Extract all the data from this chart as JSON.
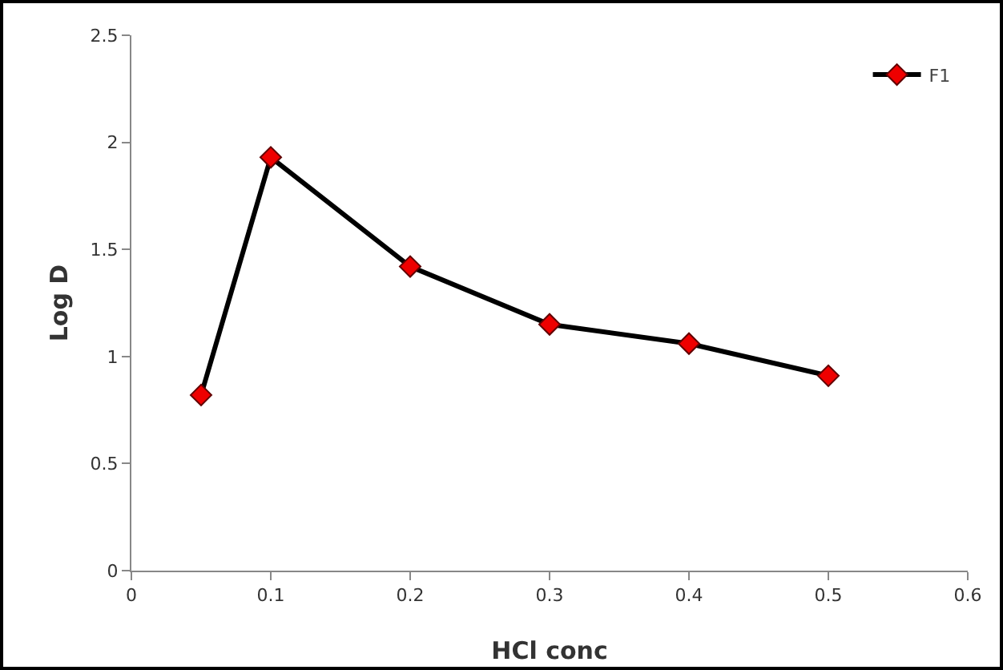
{
  "chart_data": {
    "type": "line",
    "xlabel": "HCl conc",
    "ylabel": "Log D",
    "x": [
      0.05,
      0.1,
      0.2,
      0.3,
      0.4,
      0.5
    ],
    "series": [
      {
        "name": "F1",
        "color": "#000000",
        "values": [
          0.82,
          1.93,
          1.42,
          1.15,
          1.06,
          0.91
        ]
      }
    ],
    "xlim": [
      0,
      0.6
    ],
    "xticks": [
      0,
      0.1,
      0.2,
      0.3,
      0.4,
      0.5,
      0.6
    ],
    "ylim": [
      0,
      2.5
    ],
    "yticks": [
      0,
      0.5,
      1,
      1.5,
      2,
      2.5
    ],
    "grid": false,
    "legend": "top right",
    "marker": "diamond",
    "line_style": "solid"
  }
}
